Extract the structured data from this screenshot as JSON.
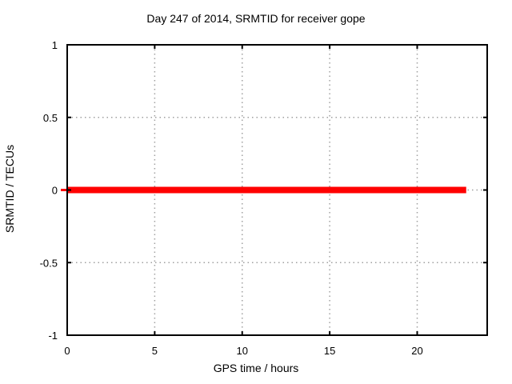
{
  "chart_data": {
    "type": "line",
    "title": "Day 247 of 2014, SRMTID for receiver gope",
    "xlabel": "GPS time / hours",
    "ylabel": "SRMTID / TECUs",
    "xlim": [
      0,
      24
    ],
    "ylim": [
      -1,
      1
    ],
    "xticks": [
      0,
      5,
      10,
      15,
      20
    ],
    "yticks": [
      -1,
      -0.5,
      0,
      0.5,
      1
    ],
    "grid": true,
    "grid_style": "dotted",
    "legend_position": "none",
    "series": [
      {
        "name": "SRMTID",
        "color": "#ff0000",
        "line_width": 8,
        "points": [
          [
            0,
            0
          ],
          [
            22.8,
            0
          ]
        ]
      }
    ],
    "edge_dash": {
      "side": "left",
      "y": 0,
      "width": 8,
      "height": 3
    },
    "colors": {
      "background": "#ffffff",
      "border": "#000000",
      "grid": "#a0a0a0",
      "tick": "#000000",
      "text": "#000000",
      "line": "#ff0000"
    }
  }
}
